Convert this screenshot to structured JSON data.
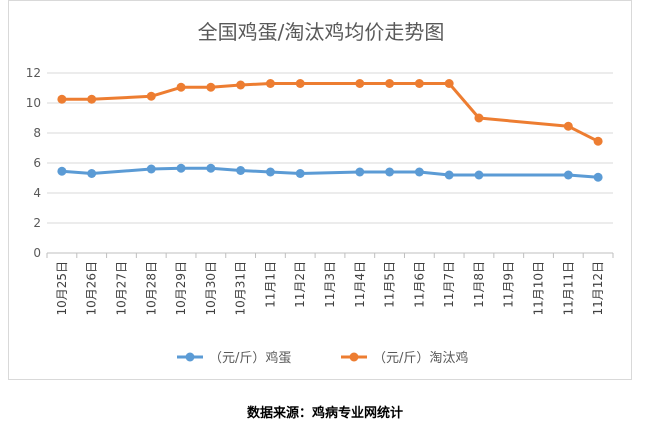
{
  "chart_data": {
    "type": "line",
    "title": "全国鸡蛋/淘汰鸡均价走势图",
    "categories": [
      "10月25日",
      "10月26日",
      "10月27日",
      "10月28日",
      "10月29日",
      "10月30日",
      "10月31日",
      "11月1日",
      "11月2日",
      "11月3日",
      "11月4日",
      "11月5日",
      "11月6日",
      "11月7日",
      "11月8日",
      "11月9日",
      "11月10日",
      "11月11日",
      "11月12日"
    ],
    "ylim": [
      0,
      12
    ],
    "yticks": [
      "0",
      "2",
      "4",
      "6",
      "8",
      "10",
      "12"
    ],
    "grid": true,
    "legend_position": "bottom",
    "series": [
      {
        "name": "（元/斤）鸡蛋",
        "color": "#5b9bd5",
        "values": [
          5.45,
          5.3,
          null,
          5.6,
          5.65,
          5.65,
          5.5,
          5.4,
          5.3,
          null,
          5.4,
          5.4,
          5.4,
          5.2,
          5.2,
          null,
          null,
          5.2,
          5.05
        ]
      },
      {
        "name": "（元/斤）淘汰鸡",
        "color": "#ed7d31",
        "values": [
          10.25,
          10.25,
          null,
          10.45,
          11.05,
          11.05,
          11.2,
          11.3,
          11.3,
          null,
          11.3,
          11.3,
          11.3,
          11.3,
          9.0,
          null,
          null,
          8.45,
          7.45
        ]
      }
    ]
  },
  "source_note": "数据来源：鸡病专业网统计"
}
